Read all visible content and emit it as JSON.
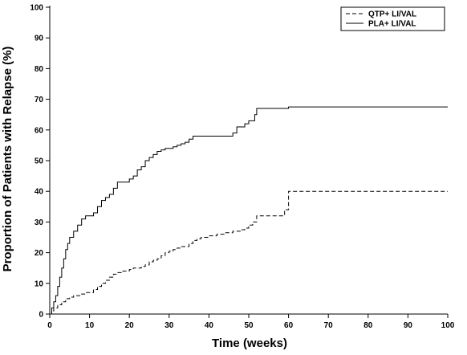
{
  "chart_data": {
    "type": "line",
    "xlabel": "Time (weeks)",
    "ylabel": "Proportion of Patients with Relapse (%)",
    "xlim": [
      0,
      100
    ],
    "ylim": [
      0,
      100
    ],
    "x_ticks": [
      "0",
      "10",
      "20",
      "30",
      "40",
      "50",
      "60",
      "70",
      "80",
      "90",
      "100"
    ],
    "y_ticks": [
      "0",
      "10",
      "20",
      "30",
      "40",
      "50",
      "60",
      "70",
      "80",
      "90",
      "100"
    ],
    "grid": false,
    "legend_position": "top-right",
    "series": [
      {
        "name": "QTP+ LI/VAL",
        "style": "dashed",
        "points": [
          [
            0,
            0
          ],
          [
            0.5,
            1
          ],
          [
            1,
            2
          ],
          [
            2,
            3
          ],
          [
            3,
            4
          ],
          [
            4,
            5
          ],
          [
            5,
            5.5
          ],
          [
            6,
            6
          ],
          [
            8,
            6.5
          ],
          [
            9,
            7
          ],
          [
            10,
            7
          ],
          [
            11,
            8
          ],
          [
            12,
            9
          ],
          [
            13,
            10
          ],
          [
            14,
            11
          ],
          [
            15,
            12
          ],
          [
            16,
            13
          ],
          [
            17,
            13.5
          ],
          [
            18,
            14
          ],
          [
            19,
            14
          ],
          [
            20,
            14.5
          ],
          [
            21,
            15
          ],
          [
            22,
            15
          ],
          [
            23,
            15.5
          ],
          [
            24,
            16
          ],
          [
            25,
            17
          ],
          [
            26,
            17.5
          ],
          [
            27,
            18
          ],
          [
            28,
            19
          ],
          [
            29,
            20
          ],
          [
            30,
            20.5
          ],
          [
            31,
            21
          ],
          [
            32,
            21.5
          ],
          [
            33,
            22
          ],
          [
            34,
            22
          ],
          [
            35,
            23
          ],
          [
            36,
            24
          ],
          [
            37,
            24.5
          ],
          [
            38,
            25
          ],
          [
            40,
            25.5
          ],
          [
            42,
            26
          ],
          [
            44,
            26.5
          ],
          [
            46,
            27
          ],
          [
            48,
            27.5
          ],
          [
            49,
            28
          ],
          [
            50,
            29
          ],
          [
            51,
            30
          ],
          [
            52,
            32
          ],
          [
            54,
            32
          ],
          [
            56,
            32
          ],
          [
            58,
            32
          ],
          [
            59,
            34
          ],
          [
            59.5,
            34
          ],
          [
            60,
            40
          ],
          [
            65,
            40
          ],
          [
            70,
            40
          ],
          [
            80,
            40
          ],
          [
            90,
            40
          ],
          [
            100,
            40
          ]
        ]
      },
      {
        "name": "PLA+ LI/VAL",
        "style": "solid",
        "points": [
          [
            0,
            0
          ],
          [
            0.5,
            2
          ],
          [
            1,
            4
          ],
          [
            1.5,
            6
          ],
          [
            2,
            9
          ],
          [
            2.5,
            12
          ],
          [
            3,
            15
          ],
          [
            3.5,
            18
          ],
          [
            4,
            21
          ],
          [
            4.5,
            23
          ],
          [
            5,
            25
          ],
          [
            6,
            27
          ],
          [
            7,
            29
          ],
          [
            8,
            31
          ],
          [
            9,
            32
          ],
          [
            10,
            32
          ],
          [
            11,
            33
          ],
          [
            12,
            35
          ],
          [
            13,
            37
          ],
          [
            14,
            38
          ],
          [
            15,
            39
          ],
          [
            16,
            41
          ],
          [
            17,
            43
          ],
          [
            18,
            43
          ],
          [
            19,
            43
          ],
          [
            20,
            44
          ],
          [
            21,
            45
          ],
          [
            22,
            47
          ],
          [
            23,
            48
          ],
          [
            24,
            50
          ],
          [
            25,
            51
          ],
          [
            26,
            52
          ],
          [
            27,
            53
          ],
          [
            28,
            53.5
          ],
          [
            29,
            54
          ],
          [
            30,
            54
          ],
          [
            31,
            54.5
          ],
          [
            32,
            55
          ],
          [
            33,
            55.5
          ],
          [
            34,
            56
          ],
          [
            35,
            57
          ],
          [
            36,
            58
          ],
          [
            38,
            58
          ],
          [
            40,
            58
          ],
          [
            42,
            58
          ],
          [
            44,
            58
          ],
          [
            46,
            59
          ],
          [
            47,
            61
          ],
          [
            48,
            61
          ],
          [
            49,
            62
          ],
          [
            50,
            63
          ],
          [
            51,
            63
          ],
          [
            51.5,
            65
          ],
          [
            52,
            67
          ],
          [
            53,
            67
          ],
          [
            60,
            67.5
          ],
          [
            70,
            67.5
          ],
          [
            80,
            67.5
          ],
          [
            90,
            67.5
          ],
          [
            100,
            67.5
          ]
        ]
      }
    ]
  }
}
